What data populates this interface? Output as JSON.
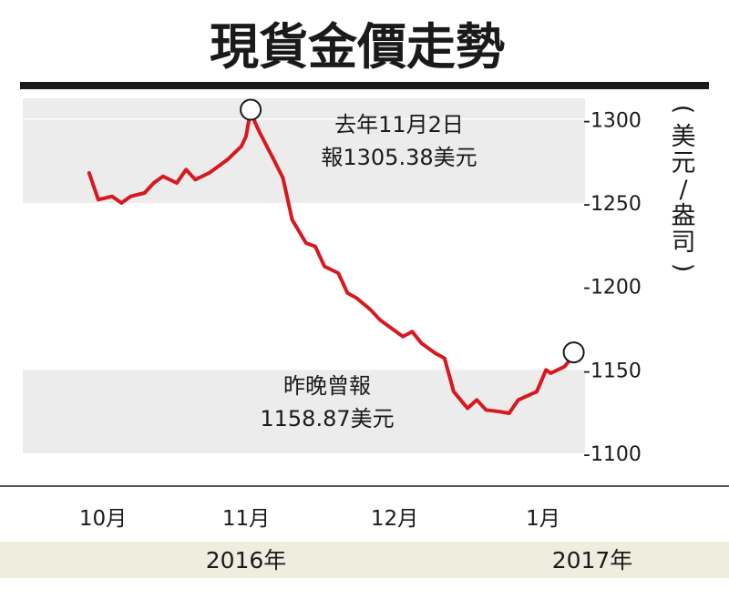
{
  "chart_data": {
    "type": "line",
    "title": "現貨金價走勢",
    "ylabel": "(美元/盎司)",
    "ylim": [
      1100,
      1310
    ],
    "yticks": [
      1300,
      1250,
      1200,
      1150,
      1100
    ],
    "ytick_prefix": "-",
    "grid": "alternating bands",
    "x_month_labels": [
      "10月",
      "11月",
      "12月",
      "1月"
    ],
    "x_year_labels": [
      "2016年",
      "2017年"
    ],
    "series": [
      {
        "color": "#d7191f",
        "x": [
          "2016-09-28",
          "2016-09-30",
          "2016-10-03",
          "2016-10-05",
          "2016-10-07",
          "2016-10-10",
          "2016-10-12",
          "2016-10-14",
          "2016-10-17",
          "2016-10-19",
          "2016-10-21",
          "2016-10-24",
          "2016-10-26",
          "2016-10-28",
          "2016-10-31",
          "2016-11-01",
          "2016-11-02",
          "2016-11-03",
          "2016-11-04",
          "2016-11-07",
          "2016-11-09",
          "2016-11-11",
          "2016-11-14",
          "2016-11-16",
          "2016-11-18",
          "2016-11-21",
          "2016-11-23",
          "2016-11-25",
          "2016-11-28",
          "2016-11-30",
          "2016-12-02",
          "2016-12-05",
          "2016-12-07",
          "2016-12-09",
          "2016-12-12",
          "2016-12-14",
          "2016-12-16",
          "2016-12-19",
          "2016-12-21",
          "2016-12-23",
          "2016-12-26",
          "2016-12-28",
          "2016-12-30",
          "2017-01-03",
          "2017-01-05",
          "2017-01-06",
          "2017-01-09",
          "2017-01-11"
        ],
        "y": [
          1268,
          1252,
          1254,
          1250,
          1254,
          1256,
          1262,
          1266,
          1262,
          1270,
          1264,
          1268,
          1272,
          1276,
          1284,
          1290,
          1305.38,
          1298,
          1292,
          1276,
          1265,
          1240,
          1226,
          1224,
          1212,
          1208,
          1196,
          1193,
          1186,
          1180,
          1176,
          1170,
          1173,
          1166,
          1160,
          1157,
          1137,
          1127,
          1132,
          1126,
          1125,
          1124,
          1132,
          1137,
          1150,
          1148,
          1152,
          1158.87
        ]
      }
    ],
    "annotations": [
      {
        "x": "2016-11-02",
        "y": 1305.38,
        "line1": "去年11月2日",
        "line2": "報1305.38美元"
      },
      {
        "x": "2017-01-11",
        "y": 1158.87,
        "line1": "昨晚曾報",
        "line2": "1158.87美元"
      }
    ],
    "colors": {
      "line": "#d7191f",
      "band": "#ececec",
      "year_band": "#efeddd",
      "axis": "#1a1a1a"
    }
  }
}
